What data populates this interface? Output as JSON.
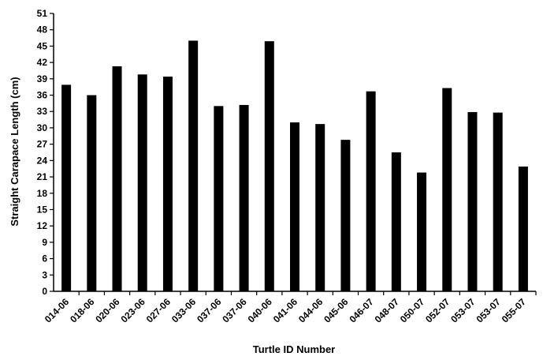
{
  "chart_data": {
    "type": "bar",
    "title": "",
    "xlabel": "Turtle ID Number",
    "ylabel": "Straight Carapace Length (cm)",
    "ylim": [
      0,
      51
    ],
    "yticks": [
      0,
      3,
      6,
      9,
      12,
      15,
      18,
      21,
      24,
      27,
      30,
      33,
      36,
      39,
      42,
      45,
      48,
      51
    ],
    "grid": false,
    "legend": "none",
    "bar_color": "#000000",
    "categories": [
      "014-06",
      "018-06",
      "020-06",
      "023-06",
      "027-06",
      "033-06",
      "037-06",
      "037-06",
      "040-06",
      "041-06",
      "044-06",
      "045-06",
      "046-07",
      "048-07",
      "050-07",
      "052-07",
      "053-07",
      "053-07",
      "055-07"
    ],
    "values": [
      37.9,
      36.0,
      41.3,
      39.8,
      39.4,
      46.0,
      34.0,
      34.2,
      45.9,
      31.0,
      30.7,
      27.8,
      36.7,
      25.5,
      21.8,
      37.3,
      32.9,
      32.8,
      22.9
    ]
  }
}
